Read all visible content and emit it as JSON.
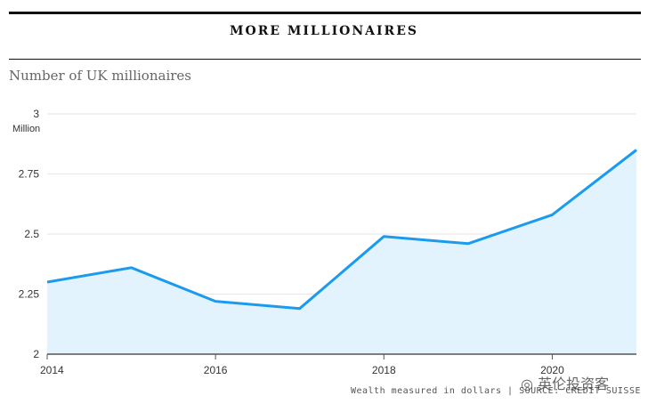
{
  "header": {
    "title": "MORE MILLIONAIRES",
    "subtitle": "Number of UK millionaires"
  },
  "footer": {
    "source": "Wealth measured in dollars | SOURCE: CREDIT SUISSE",
    "watermark": "英伦投资客"
  },
  "colors": {
    "line": "#1a9bef",
    "area": "#e3f3fd",
    "grid": "#e6e6e6",
    "axis": "#555555"
  },
  "chart_data": {
    "type": "area",
    "title": "MORE MILLIONAIRES",
    "subtitle": "Number of UK millionaires",
    "unit_label": "Million",
    "xlabel": "",
    "ylabel": "",
    "x": [
      2014,
      2015,
      2016,
      2017,
      2018,
      2019,
      2020,
      2021
    ],
    "series": [
      {
        "values": [
          2.3,
          2.36,
          2.22,
          2.19,
          2.49,
          2.46,
          2.58,
          2.85
        ]
      }
    ],
    "xticks": [
      "2014",
      "2016",
      "2018",
      "2020"
    ],
    "yticks": [
      "2",
      "2.25",
      "2.5",
      "2.75",
      "3"
    ],
    "ylim": [
      2,
      3
    ],
    "xlim": [
      2014,
      2021
    ],
    "grid": true,
    "legend": "none"
  }
}
